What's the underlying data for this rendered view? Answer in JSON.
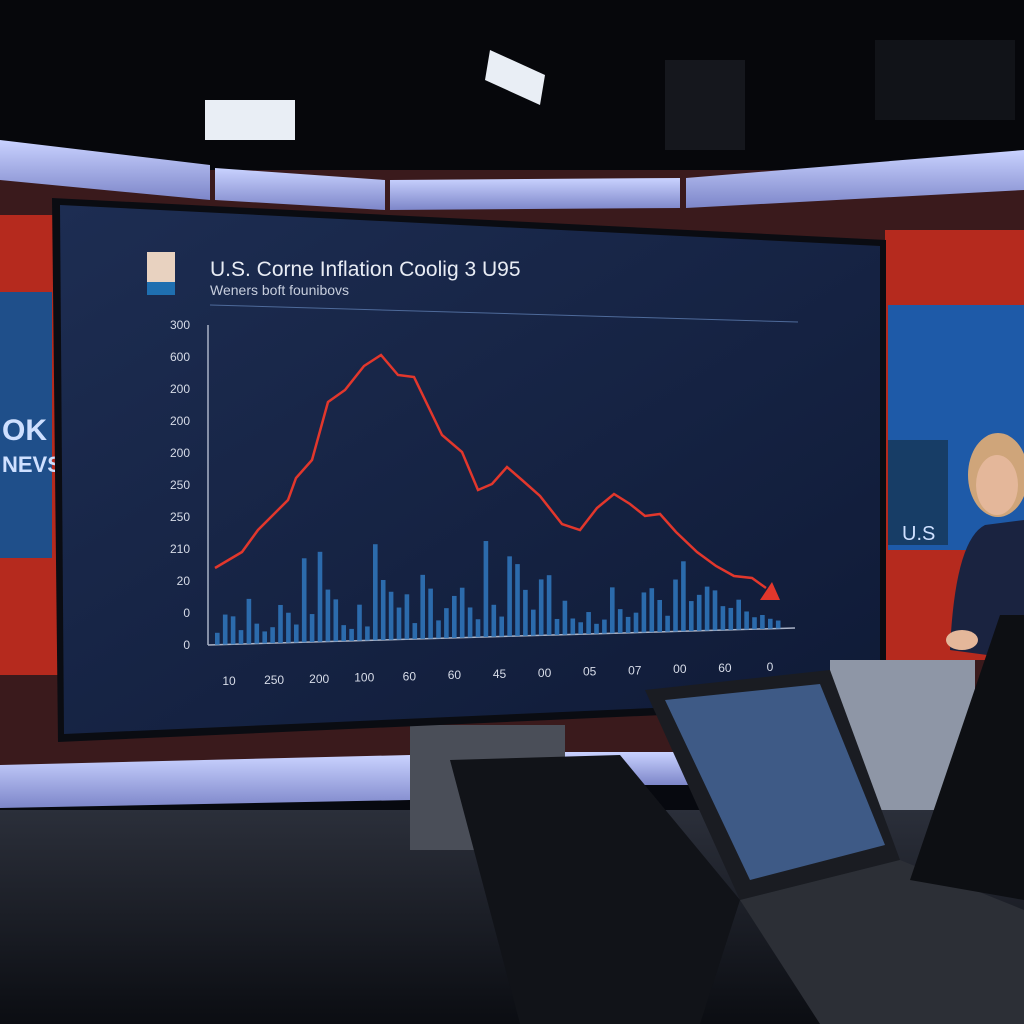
{
  "screen": {
    "title": "U.S. Corne Inflation Coolig 3 U95",
    "subtitle": "Weners boft founibovs",
    "y_labels": [
      "300",
      "600",
      "200",
      "200",
      "200",
      "250",
      "250",
      "210",
      "20",
      "0",
      "0"
    ],
    "x_labels": [
      "10",
      "250",
      "200",
      "100",
      "60",
      "60",
      "45",
      "00",
      "05",
      "07",
      "00",
      "60",
      "0"
    ]
  },
  "backdrop": {
    "left_screen": [
      "OK",
      "NEVS"
    ],
    "right_screen": "U.S"
  }
}
